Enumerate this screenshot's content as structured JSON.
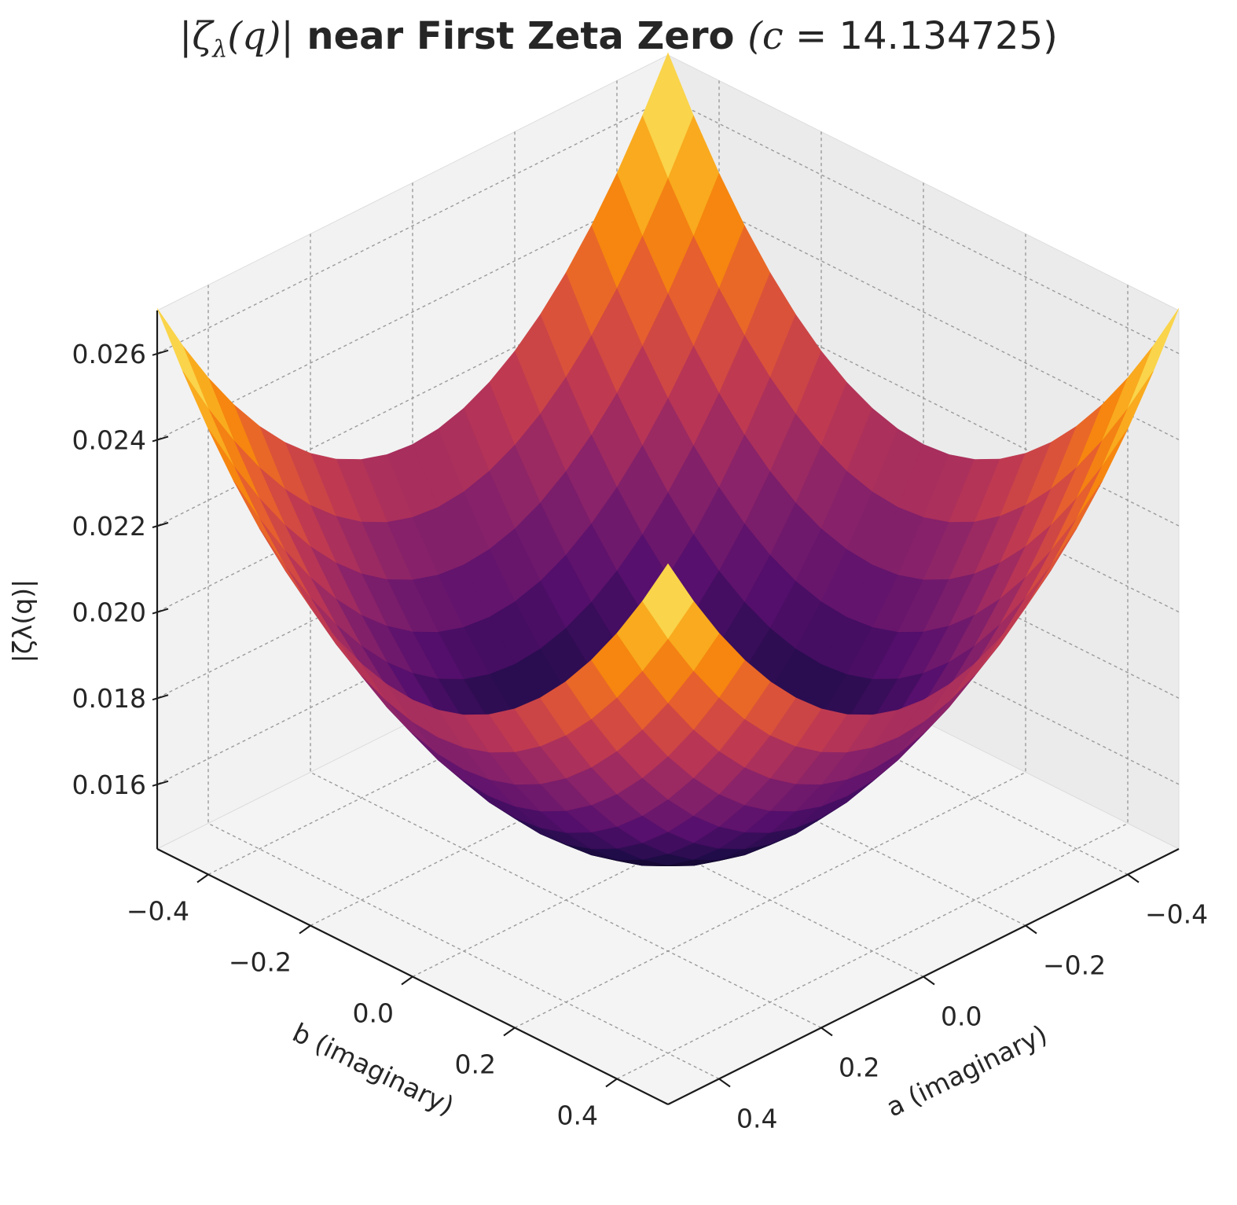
{
  "chart_data": {
    "type": "surface3d",
    "title": {
      "prefix": "|ζ",
      "sub": "λ",
      "middle": "(q)|",
      "bold": " near First Zeta Zero ",
      "param_open": "(c",
      "param_eq": " = ",
      "param_value": "14.134725",
      "param_close": ")"
    },
    "zlabel": "|ζλ(q)|",
    "xlabel": "a (imaginary)",
    "ylabel": "b (imaginary)",
    "x_range": [
      -0.5,
      0.5
    ],
    "y_range": [
      -0.5,
      0.5
    ],
    "z_range": [
      0.0145,
      0.027
    ],
    "x_ticks": [
      -0.4,
      -0.2,
      0.0,
      0.2,
      0.4
    ],
    "x_tick_labels": [
      "−0.4",
      "−0.2",
      "0.0",
      "0.2",
      "0.4"
    ],
    "y_ticks": [
      -0.4,
      -0.2,
      0.0,
      0.2,
      0.4
    ],
    "y_tick_labels": [
      "−0.4",
      "−0.2",
      "0.0",
      "0.2",
      "0.4"
    ],
    "z_ticks": [
      0.016,
      0.018,
      0.02,
      0.022,
      0.024,
      0.026
    ],
    "z_tick_labels": [
      "0.016",
      "0.018",
      "0.020",
      "0.022",
      "0.024",
      "0.026"
    ],
    "surface": {
      "function": "z = z0 + k*(a^2 + b^2)",
      "z0": 0.0148,
      "k": 0.0245,
      "grid_steps": 20,
      "colormap": "inferno"
    },
    "grid": true
  }
}
